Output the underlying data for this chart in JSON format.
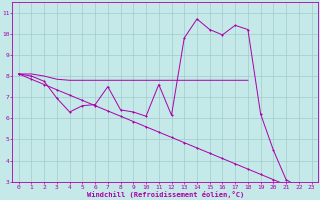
{
  "xlabel": "Windchill (Refroidissement éolien,°C)",
  "xlim": [
    -0.5,
    23.5
  ],
  "ylim": [
    3,
    11.5
  ],
  "xticks": [
    0,
    1,
    2,
    3,
    4,
    5,
    6,
    7,
    8,
    9,
    10,
    11,
    12,
    13,
    14,
    15,
    16,
    17,
    18,
    19,
    20,
    21,
    22,
    23
  ],
  "yticks": [
    3,
    4,
    5,
    6,
    7,
    8,
    9,
    10,
    11
  ],
  "bg_color": "#c5e8e8",
  "grid_color": "#a0cccc",
  "line_color": "#aa00aa",
  "line1_x": [
    0,
    1,
    2,
    3,
    4,
    5,
    6,
    7,
    8,
    9,
    10,
    11,
    12,
    13,
    14,
    15,
    16,
    17,
    18,
    19,
    20,
    21,
    22,
    23
  ],
  "line1_y": [
    8.1,
    8.0,
    7.75,
    6.95,
    6.3,
    6.6,
    6.65,
    7.5,
    6.4,
    6.3,
    6.1,
    7.6,
    6.15,
    9.8,
    10.7,
    10.2,
    9.95,
    10.4,
    10.2,
    6.2,
    4.5,
    3.1,
    2.75,
    2.55
  ],
  "line2_x": [
    0,
    1,
    2,
    3,
    4,
    5,
    6,
    7,
    8,
    9,
    10,
    11,
    12,
    13,
    14,
    15,
    16,
    17,
    18,
    19,
    20,
    21,
    22,
    23
  ],
  "line2_y": [
    8.1,
    7.85,
    7.6,
    7.35,
    7.1,
    6.85,
    6.6,
    6.35,
    6.1,
    5.85,
    5.6,
    5.35,
    5.1,
    4.85,
    4.6,
    4.35,
    4.1,
    3.85,
    3.6,
    3.35,
    3.1,
    2.85,
    2.75,
    2.55
  ],
  "line3_x": [
    0,
    1,
    2,
    3,
    4,
    5,
    6,
    7,
    8,
    9,
    10,
    11,
    12,
    13,
    14,
    15,
    16,
    17,
    18
  ],
  "line3_y": [
    8.1,
    8.1,
    8.0,
    7.85,
    7.8,
    7.8,
    7.8,
    7.8,
    7.8,
    7.8,
    7.8,
    7.8,
    7.8,
    7.8,
    7.8,
    7.8,
    7.8,
    7.8,
    7.8
  ]
}
